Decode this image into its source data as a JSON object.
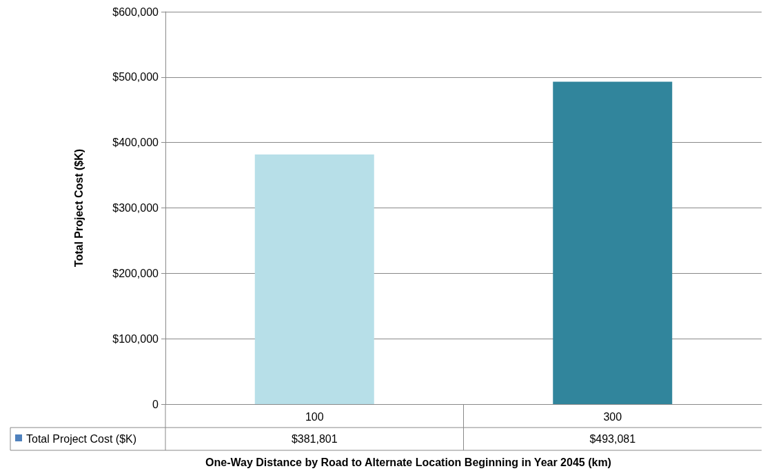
{
  "chart_data": {
    "type": "bar",
    "xlabel": "One-Way Distance by Road to Alternate Location Beginning in Year 2045 (km)",
    "ylabel": "Total Project Cost ($K)",
    "categories": [
      "100",
      "300"
    ],
    "series": [
      {
        "name": "Total Project Cost ($K)",
        "color": "#4f81bd",
        "colors": [
          "#b7dfe8",
          "#31859c"
        ],
        "values": [
          381801,
          493081
        ],
        "value_labels": [
          "$381,801",
          "$493,081"
        ]
      }
    ],
    "ylim": [
      0,
      600000
    ],
    "yticks": [
      0,
      {
        "value": 100000,
        "label": "$100,000"
      },
      {
        "value": 200000,
        "label": "$200,000"
      },
      {
        "value": 300000,
        "label": "$300,000"
      },
      {
        "value": 400000,
        "label": "$400,000"
      },
      {
        "value": 500000,
        "label": "$500,000"
      },
      {
        "value": 600000,
        "label": "$600,000"
      }
    ],
    "grid": "y",
    "legend": "bottom"
  }
}
